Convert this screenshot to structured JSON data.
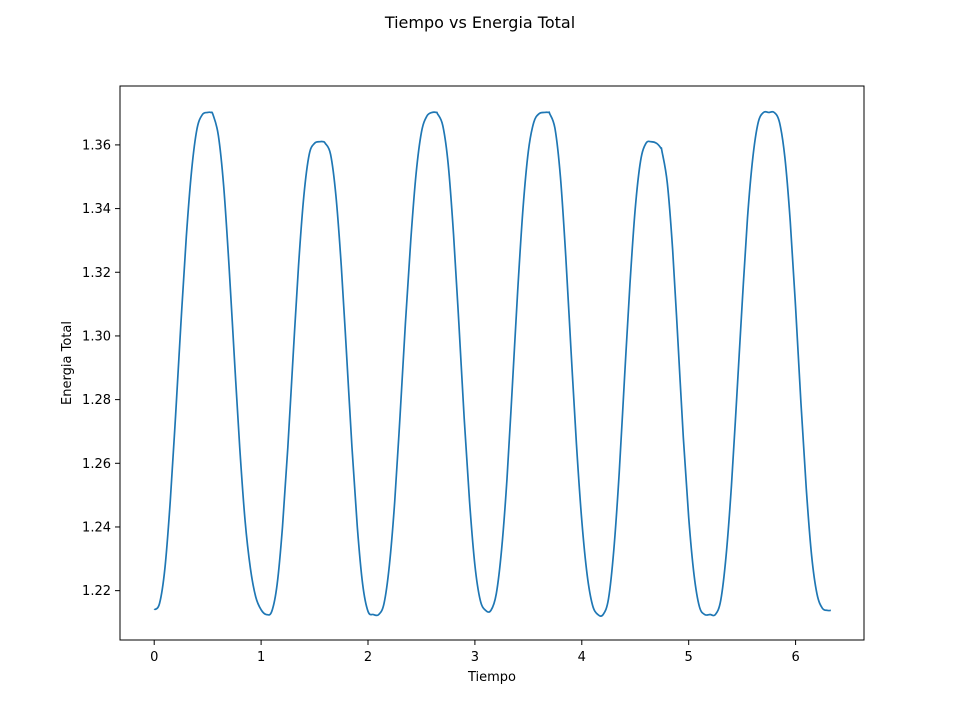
{
  "chart_data": {
    "type": "line",
    "title": "Tiempo vs Energia Total",
    "xlabel": "Tiempo",
    "ylabel": "Energia Total",
    "xlim": [
      -0.32,
      6.64
    ],
    "ylim": [
      1.2045,
      1.3785
    ],
    "xticks": [
      0,
      1,
      2,
      3,
      4,
      5,
      6
    ],
    "yticks": [
      1.22,
      1.24,
      1.26,
      1.28,
      1.3,
      1.32,
      1.34,
      1.36
    ],
    "ytick_labels": [
      "1.22",
      "1.24",
      "1.26",
      "1.28",
      "1.30",
      "1.32",
      "1.34",
      "1.36"
    ],
    "grid": false,
    "line_color": "#1f77b4",
    "series": [
      {
        "x": [
          0.0,
          0.05,
          0.1,
          0.15,
          0.2,
          0.25,
          0.3,
          0.35,
          0.4,
          0.45,
          0.5,
          0.53,
          0.55,
          0.6,
          0.65,
          0.7,
          0.75,
          0.8,
          0.85,
          0.9,
          0.95,
          1.0,
          1.05,
          1.1,
          1.15,
          1.2,
          1.25,
          1.3,
          1.35,
          1.4,
          1.45,
          1.5,
          1.55,
          1.58,
          1.6,
          1.65,
          1.7,
          1.75,
          1.8,
          1.85,
          1.9,
          1.95,
          2.0,
          2.05,
          2.1,
          2.15,
          2.2,
          2.25,
          2.3,
          2.35,
          2.4,
          2.45,
          2.5,
          2.55,
          2.6,
          2.64,
          2.65,
          2.7,
          2.75,
          2.8,
          2.85,
          2.9,
          2.95,
          3.0,
          3.05,
          3.1,
          3.15,
          3.2,
          3.25,
          3.3,
          3.35,
          3.4,
          3.45,
          3.5,
          3.55,
          3.6,
          3.65,
          3.69,
          3.7,
          3.75,
          3.8,
          3.85,
          3.9,
          3.95,
          4.0,
          4.05,
          4.1,
          4.15,
          4.2,
          4.25,
          4.3,
          4.35,
          4.4,
          4.45,
          4.5,
          4.55,
          4.6,
          4.65,
          4.7,
          4.74,
          4.75,
          4.8,
          4.85,
          4.9,
          4.95,
          5.0,
          5.05,
          5.1,
          5.15,
          5.2,
          5.25,
          5.3,
          5.35,
          5.4,
          5.45,
          5.5,
          5.55,
          5.6,
          5.65,
          5.7,
          5.75,
          5.8,
          5.85,
          5.9,
          5.95,
          6.0,
          6.05,
          6.1,
          6.15,
          6.2,
          6.25,
          6.3,
          6.33
        ],
        "y": [
          1.214,
          1.216,
          1.227,
          1.248,
          1.275,
          1.304,
          1.331,
          1.352,
          1.365,
          1.3695,
          1.3702,
          1.3702,
          1.3695,
          1.363,
          1.347,
          1.322,
          1.293,
          1.265,
          1.242,
          1.227,
          1.218,
          1.214,
          1.2125,
          1.2135,
          1.222,
          1.24,
          1.265,
          1.294,
          1.322,
          1.344,
          1.357,
          1.3605,
          1.361,
          1.361,
          1.3605,
          1.357,
          1.344,
          1.322,
          1.294,
          1.265,
          1.24,
          1.222,
          1.2135,
          1.2125,
          1.2125,
          1.216,
          1.228,
          1.248,
          1.275,
          1.304,
          1.33,
          1.351,
          1.364,
          1.369,
          1.3702,
          1.3702,
          1.3698,
          1.366,
          1.354,
          1.332,
          1.304,
          1.274,
          1.248,
          1.228,
          1.217,
          1.2138,
          1.2138,
          1.219,
          1.233,
          1.255,
          1.284,
          1.314,
          1.34,
          1.358,
          1.367,
          1.3698,
          1.3702,
          1.3702,
          1.3698,
          1.365,
          1.35,
          1.325,
          1.295,
          1.266,
          1.242,
          1.225,
          1.2155,
          1.2125,
          1.2125,
          1.2175,
          1.233,
          1.257,
          1.287,
          1.316,
          1.34,
          1.355,
          1.3605,
          1.361,
          1.3605,
          1.359,
          1.358,
          1.348,
          1.327,
          1.298,
          1.268,
          1.243,
          1.225,
          1.215,
          1.2125,
          1.2125,
          1.2125,
          1.217,
          1.231,
          1.253,
          1.281,
          1.31,
          1.337,
          1.356,
          1.367,
          1.3702,
          1.3702,
          1.3702,
          1.367,
          1.356,
          1.336,
          1.309,
          1.279,
          1.252,
          1.231,
          1.219,
          1.2145,
          1.2138,
          1.2138
        ]
      }
    ]
  }
}
